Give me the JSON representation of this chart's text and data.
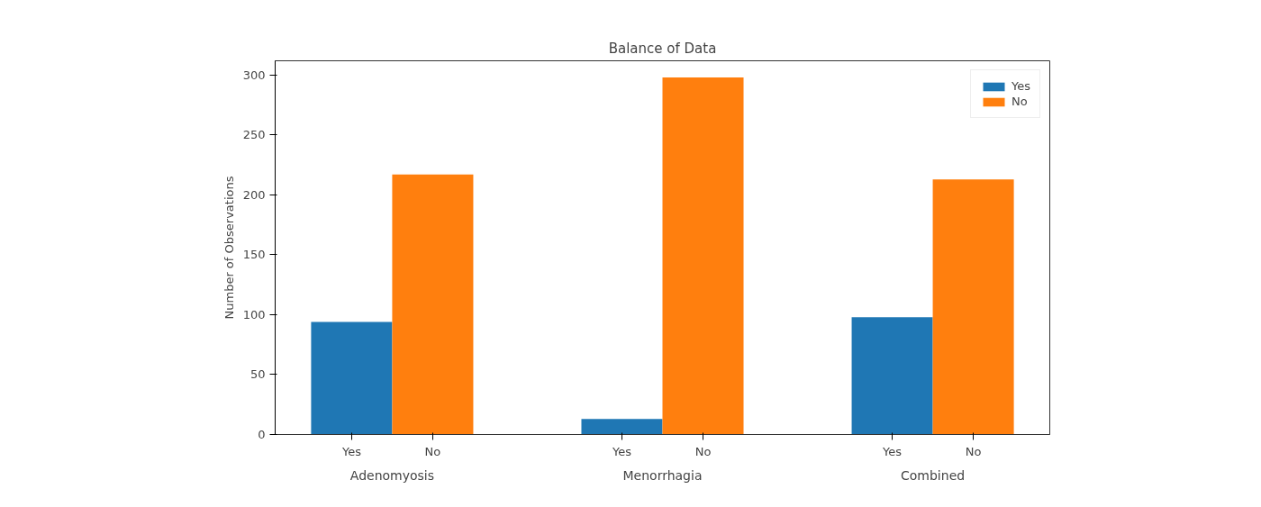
{
  "chart_data": {
    "type": "bar",
    "title": "Balance of Data",
    "ylabel": "Number of Observations",
    "categories": [
      "Adenomyosis",
      "Menorrhagia",
      "Combined"
    ],
    "series": [
      {
        "name": "Yes",
        "color": "#1f77b4",
        "values": [
          94,
          13,
          98
        ]
      },
      {
        "name": "No",
        "color": "#ff7f0e",
        "values": [
          217,
          298,
          213
        ]
      }
    ],
    "annotations": [
      "Yes",
      "No",
      "Yes",
      "No",
      "Yes",
      "No"
    ],
    "ylim": [
      0,
      312
    ],
    "yticks": [
      0,
      50,
      100,
      150,
      200,
      250,
      300
    ],
    "grid": false,
    "legend": "top right"
  }
}
